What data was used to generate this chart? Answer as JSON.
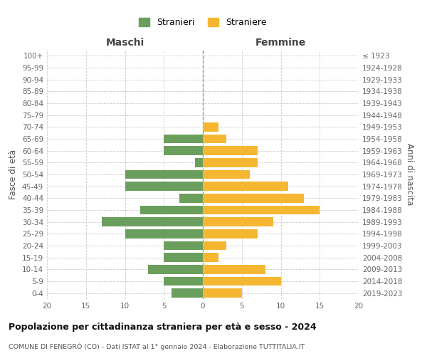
{
  "age_groups": [
    "0-4",
    "5-9",
    "10-14",
    "15-19",
    "20-24",
    "25-29",
    "30-34",
    "35-39",
    "40-44",
    "45-49",
    "50-54",
    "55-59",
    "60-64",
    "65-69",
    "70-74",
    "75-79",
    "80-84",
    "85-89",
    "90-94",
    "95-99",
    "100+"
  ],
  "birth_years": [
    "2019-2023",
    "2014-2018",
    "2009-2013",
    "2004-2008",
    "1999-2003",
    "1994-1998",
    "1989-1993",
    "1984-1988",
    "1979-1983",
    "1974-1978",
    "1969-1973",
    "1964-1968",
    "1959-1963",
    "1954-1958",
    "1949-1953",
    "1944-1948",
    "1939-1943",
    "1934-1938",
    "1929-1933",
    "1924-1928",
    "≤ 1923"
  ],
  "maschi": [
    4,
    5,
    7,
    5,
    5,
    10,
    13,
    8,
    3,
    10,
    10,
    1,
    5,
    5,
    0,
    0,
    0,
    0,
    0,
    0,
    0
  ],
  "femmine": [
    5,
    10,
    8,
    2,
    3,
    7,
    9,
    15,
    13,
    11,
    6,
    7,
    7,
    3,
    2,
    0,
    0,
    0,
    0,
    0,
    0
  ],
  "maschi_color": "#6a9e5c",
  "femmine_color": "#f5b731",
  "background_color": "#ffffff",
  "grid_color": "#cccccc",
  "title": "Popolazione per cittadinanza straniera per età e sesso - 2024",
  "subtitle": "COMUNE DI FENEGRÒ (CO) - Dati ISTAT al 1° gennaio 2024 - Elaborazione TUTTITALIA.IT",
  "ylabel_left": "Fasce di età",
  "ylabel_right": "Anni di nascita",
  "xlabel_maschi": "Maschi",
  "xlabel_femmine": "Femmine",
  "legend_maschi": "Stranieri",
  "legend_femmine": "Straniere",
  "xlim": 20,
  "bar_height": 0.75
}
